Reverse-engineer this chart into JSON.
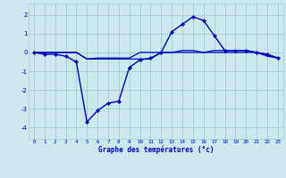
{
  "x": [
    0,
    1,
    2,
    3,
    4,
    5,
    6,
    7,
    8,
    9,
    10,
    11,
    12,
    13,
    14,
    15,
    16,
    17,
    18,
    19,
    20,
    21,
    22,
    23
  ],
  "y_main": [
    0.0,
    -0.1,
    -0.1,
    -0.2,
    -0.5,
    -3.7,
    -3.1,
    -2.7,
    -2.6,
    -0.8,
    -0.4,
    -0.3,
    0.0,
    1.1,
    1.5,
    1.9,
    1.7,
    0.9,
    0.1,
    0.1,
    0.1,
    0.0,
    -0.1,
    -0.3
  ],
  "y_line2": [
    0.0,
    0.0,
    0.0,
    0.0,
    0.0,
    -0.35,
    -0.35,
    -0.35,
    -0.35,
    -0.35,
    -0.35,
    -0.35,
    0.0,
    0.0,
    0.0,
    0.0,
    0.0,
    0.0,
    0.0,
    0.0,
    0.0,
    0.0,
    -0.2,
    -0.3
  ],
  "y_line3": [
    0.0,
    0.0,
    0.0,
    0.0,
    0.0,
    -0.35,
    -0.3,
    -0.3,
    -0.3,
    -0.3,
    0.0,
    0.0,
    0.0,
    0.0,
    0.1,
    0.1,
    0.0,
    0.1,
    0.1,
    0.1,
    0.1,
    0.0,
    -0.1,
    -0.3
  ],
  "line_color": "#0000bb",
  "bg_color": "#cce8ec",
  "grid_color": "#aac8cc",
  "xlabel": "Graphe des températures (°c)",
  "xlim": [
    -0.5,
    23.5
  ],
  "ylim": [
    -4.6,
    2.6
  ],
  "yticks": [
    -4,
    -3,
    -2,
    -1,
    0,
    1,
    2
  ],
  "xticks": [
    0,
    1,
    2,
    3,
    4,
    5,
    6,
    7,
    8,
    9,
    10,
    11,
    12,
    13,
    14,
    15,
    16,
    17,
    18,
    19,
    20,
    21,
    22,
    23
  ]
}
